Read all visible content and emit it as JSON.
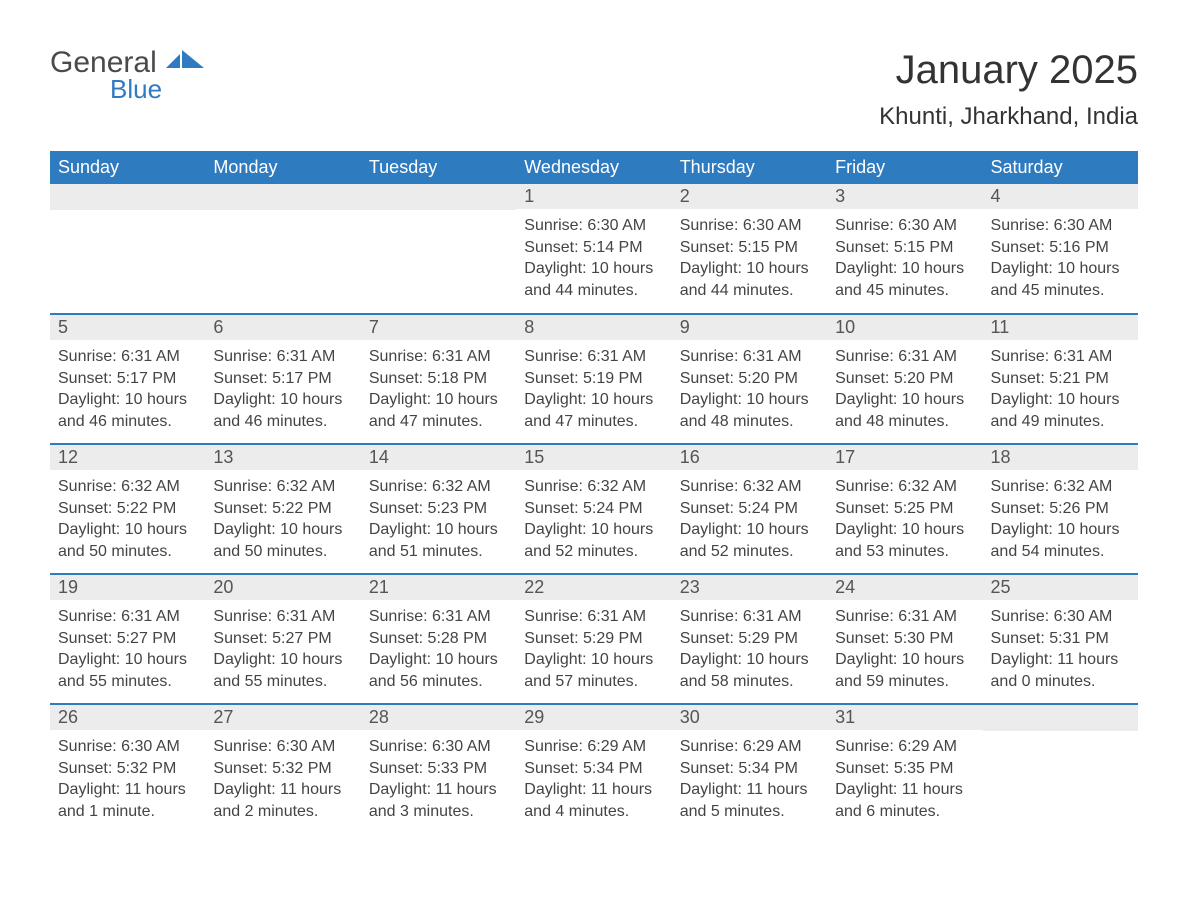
{
  "brand": {
    "name_line1": "General",
    "name_line2": "Blue",
    "mark_fill": "#2f7bbf",
    "text_color": "#4a4a4a"
  },
  "header": {
    "title": "January 2025",
    "location": "Khunti, Jharkhand, India",
    "title_fontsize": 40,
    "location_fontsize": 24,
    "title_color": "#333333"
  },
  "calendar_style": {
    "header_bg": "#2f7bbf",
    "header_text_color": "#ffffff",
    "day_header_bg": "#ececec",
    "day_text_color": "#444444",
    "row_separator_color": "#2f7bbf",
    "font_family": "Arial",
    "cell_width_pct": 14.28
  },
  "weekdays": [
    "Sunday",
    "Monday",
    "Tuesday",
    "Wednesday",
    "Thursday",
    "Friday",
    "Saturday"
  ],
  "weeks": [
    [
      null,
      null,
      null,
      {
        "day": "1",
        "sunrise": "Sunrise: 6:30 AM",
        "sunset": "Sunset: 5:14 PM",
        "daylight": "Daylight: 10 hours and 44 minutes."
      },
      {
        "day": "2",
        "sunrise": "Sunrise: 6:30 AM",
        "sunset": "Sunset: 5:15 PM",
        "daylight": "Daylight: 10 hours and 44 minutes."
      },
      {
        "day": "3",
        "sunrise": "Sunrise: 6:30 AM",
        "sunset": "Sunset: 5:15 PM",
        "daylight": "Daylight: 10 hours and 45 minutes."
      },
      {
        "day": "4",
        "sunrise": "Sunrise: 6:30 AM",
        "sunset": "Sunset: 5:16 PM",
        "daylight": "Daylight: 10 hours and 45 minutes."
      }
    ],
    [
      {
        "day": "5",
        "sunrise": "Sunrise: 6:31 AM",
        "sunset": "Sunset: 5:17 PM",
        "daylight": "Daylight: 10 hours and 46 minutes."
      },
      {
        "day": "6",
        "sunrise": "Sunrise: 6:31 AM",
        "sunset": "Sunset: 5:17 PM",
        "daylight": "Daylight: 10 hours and 46 minutes."
      },
      {
        "day": "7",
        "sunrise": "Sunrise: 6:31 AM",
        "sunset": "Sunset: 5:18 PM",
        "daylight": "Daylight: 10 hours and 47 minutes."
      },
      {
        "day": "8",
        "sunrise": "Sunrise: 6:31 AM",
        "sunset": "Sunset: 5:19 PM",
        "daylight": "Daylight: 10 hours and 47 minutes."
      },
      {
        "day": "9",
        "sunrise": "Sunrise: 6:31 AM",
        "sunset": "Sunset: 5:20 PM",
        "daylight": "Daylight: 10 hours and 48 minutes."
      },
      {
        "day": "10",
        "sunrise": "Sunrise: 6:31 AM",
        "sunset": "Sunset: 5:20 PM",
        "daylight": "Daylight: 10 hours and 48 minutes."
      },
      {
        "day": "11",
        "sunrise": "Sunrise: 6:31 AM",
        "sunset": "Sunset: 5:21 PM",
        "daylight": "Daylight: 10 hours and 49 minutes."
      }
    ],
    [
      {
        "day": "12",
        "sunrise": "Sunrise: 6:32 AM",
        "sunset": "Sunset: 5:22 PM",
        "daylight": "Daylight: 10 hours and 50 minutes."
      },
      {
        "day": "13",
        "sunrise": "Sunrise: 6:32 AM",
        "sunset": "Sunset: 5:22 PM",
        "daylight": "Daylight: 10 hours and 50 minutes."
      },
      {
        "day": "14",
        "sunrise": "Sunrise: 6:32 AM",
        "sunset": "Sunset: 5:23 PM",
        "daylight": "Daylight: 10 hours and 51 minutes."
      },
      {
        "day": "15",
        "sunrise": "Sunrise: 6:32 AM",
        "sunset": "Sunset: 5:24 PM",
        "daylight": "Daylight: 10 hours and 52 minutes."
      },
      {
        "day": "16",
        "sunrise": "Sunrise: 6:32 AM",
        "sunset": "Sunset: 5:24 PM",
        "daylight": "Daylight: 10 hours and 52 minutes."
      },
      {
        "day": "17",
        "sunrise": "Sunrise: 6:32 AM",
        "sunset": "Sunset: 5:25 PM",
        "daylight": "Daylight: 10 hours and 53 minutes."
      },
      {
        "day": "18",
        "sunrise": "Sunrise: 6:32 AM",
        "sunset": "Sunset: 5:26 PM",
        "daylight": "Daylight: 10 hours and 54 minutes."
      }
    ],
    [
      {
        "day": "19",
        "sunrise": "Sunrise: 6:31 AM",
        "sunset": "Sunset: 5:27 PM",
        "daylight": "Daylight: 10 hours and 55 minutes."
      },
      {
        "day": "20",
        "sunrise": "Sunrise: 6:31 AM",
        "sunset": "Sunset: 5:27 PM",
        "daylight": "Daylight: 10 hours and 55 minutes."
      },
      {
        "day": "21",
        "sunrise": "Sunrise: 6:31 AM",
        "sunset": "Sunset: 5:28 PM",
        "daylight": "Daylight: 10 hours and 56 minutes."
      },
      {
        "day": "22",
        "sunrise": "Sunrise: 6:31 AM",
        "sunset": "Sunset: 5:29 PM",
        "daylight": "Daylight: 10 hours and 57 minutes."
      },
      {
        "day": "23",
        "sunrise": "Sunrise: 6:31 AM",
        "sunset": "Sunset: 5:29 PM",
        "daylight": "Daylight: 10 hours and 58 minutes."
      },
      {
        "day": "24",
        "sunrise": "Sunrise: 6:31 AM",
        "sunset": "Sunset: 5:30 PM",
        "daylight": "Daylight: 10 hours and 59 minutes."
      },
      {
        "day": "25",
        "sunrise": "Sunrise: 6:30 AM",
        "sunset": "Sunset: 5:31 PM",
        "daylight": "Daylight: 11 hours and 0 minutes."
      }
    ],
    [
      {
        "day": "26",
        "sunrise": "Sunrise: 6:30 AM",
        "sunset": "Sunset: 5:32 PM",
        "daylight": "Daylight: 11 hours and 1 minute."
      },
      {
        "day": "27",
        "sunrise": "Sunrise: 6:30 AM",
        "sunset": "Sunset: 5:32 PM",
        "daylight": "Daylight: 11 hours and 2 minutes."
      },
      {
        "day": "28",
        "sunrise": "Sunrise: 6:30 AM",
        "sunset": "Sunset: 5:33 PM",
        "daylight": "Daylight: 11 hours and 3 minutes."
      },
      {
        "day": "29",
        "sunrise": "Sunrise: 6:29 AM",
        "sunset": "Sunset: 5:34 PM",
        "daylight": "Daylight: 11 hours and 4 minutes."
      },
      {
        "day": "30",
        "sunrise": "Sunrise: 6:29 AM",
        "sunset": "Sunset: 5:34 PM",
        "daylight": "Daylight: 11 hours and 5 minutes."
      },
      {
        "day": "31",
        "sunrise": "Sunrise: 6:29 AM",
        "sunset": "Sunset: 5:35 PM",
        "daylight": "Daylight: 11 hours and 6 minutes."
      },
      null
    ]
  ]
}
